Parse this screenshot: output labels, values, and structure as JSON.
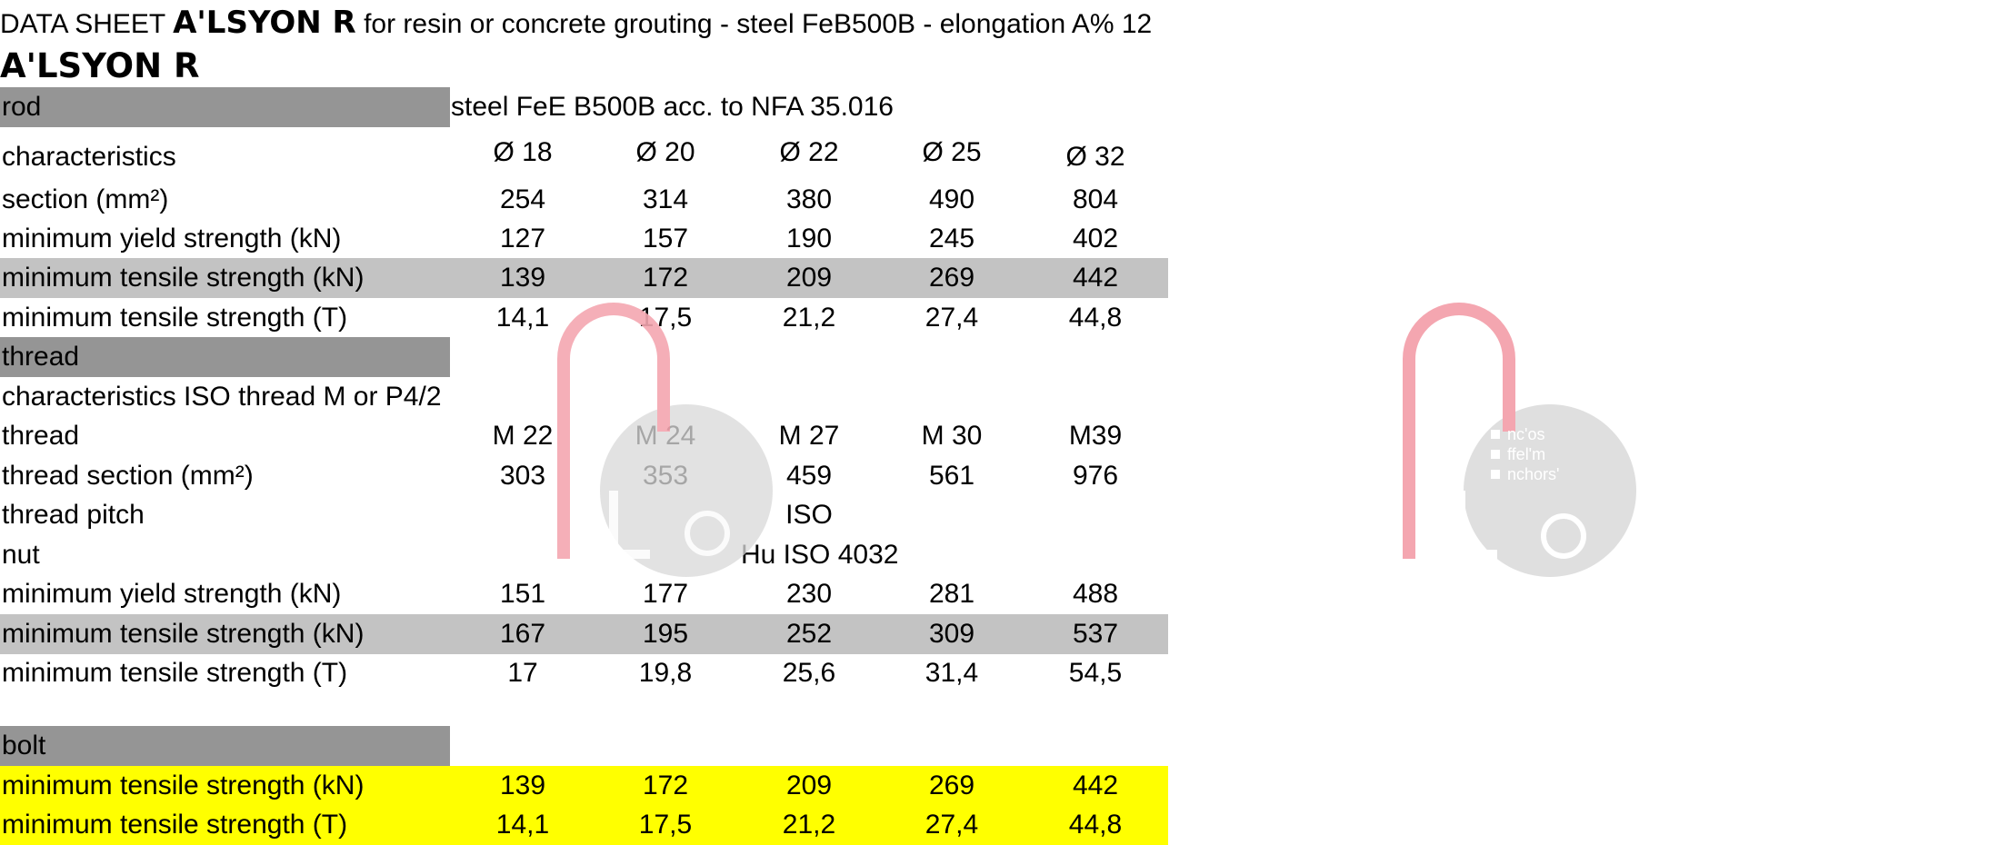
{
  "title": {
    "prefix": "DATA SHEET",
    "brand": "A'LSYON R",
    "suffix": "for resin or concrete grouting - steel FeB500B - elongation A% 12"
  },
  "heading": "A'LSYON R",
  "rod": {
    "label": "rod",
    "note": "steel FeE B500B acc. to NFA 35.016",
    "rows": [
      {
        "label": "characteristics",
        "values": [
          "Ø 18",
          "Ø 20",
          "Ø 22",
          "Ø 25",
          "Ø 32"
        ]
      },
      {
        "label": "section (mm²)",
        "values": [
          "254",
          "314",
          "380",
          "490",
          "804"
        ]
      },
      {
        "label": "minimum yield strength (kN)",
        "values": [
          "127",
          "157",
          "190",
          "245",
          "402"
        ]
      },
      {
        "label": "minimum tensile strength (kN)",
        "values": [
          "139",
          "172",
          "209",
          "269",
          "442"
        ]
      },
      {
        "label": "minimum tensile strength (T)",
        "values": [
          "14,1",
          "17,5",
          "21,2",
          "27,4",
          "44,8"
        ]
      }
    ]
  },
  "thread": {
    "label": "thread",
    "characteristics": "characteristics ISO thread M or P4/2",
    "thread_row": {
      "label": "thread",
      "values": [
        "M 22",
        "M 24",
        "M 27",
        "M 30",
        "M39"
      ]
    },
    "section_row": {
      "label": "thread section (mm²)",
      "values": [
        "303",
        "353",
        "459",
        "561",
        "976"
      ]
    },
    "pitch_row": {
      "label": "thread pitch",
      "value": "ISO"
    },
    "nut_row": {
      "label": "nut",
      "value": "Hu ISO 4032"
    },
    "rows": [
      {
        "label": "minimum yield strength (kN)",
        "values": [
          "151",
          "177",
          "230",
          "281",
          "488"
        ]
      },
      {
        "label": "minimum tensile strength (kN)",
        "values": [
          "167",
          "195",
          "252",
          "309",
          "537"
        ]
      },
      {
        "label": "minimum tensile strength (T)",
        "values": [
          "17",
          "19,8",
          "25,6",
          "31,4",
          "54,5"
        ]
      }
    ]
  },
  "bolt": {
    "label": "bolt",
    "rows": [
      {
        "label": "minimum tensile strength (kN)",
        "values": [
          "139",
          "172",
          "209",
          "269",
          "442"
        ]
      },
      {
        "label": "minimum tensile strength (T)",
        "values": [
          "14,1",
          "17,5",
          "21,2",
          "27,4",
          "44,8"
        ]
      }
    ]
  },
  "watermark": {
    "lines": [
      "nc'os",
      "ffel'm",
      "nchors'"
    ],
    "colors": {
      "arch": "#f4a6b0",
      "disc": "#d9d9d9"
    }
  }
}
